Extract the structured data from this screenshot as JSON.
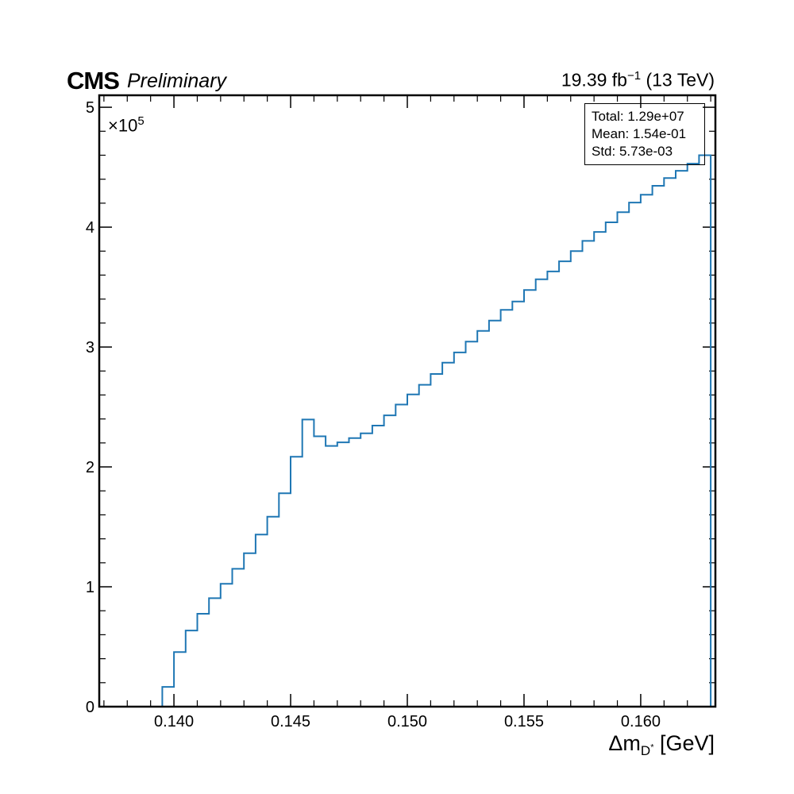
{
  "header": {
    "experiment": "CMS",
    "status": "Preliminary",
    "lumi_value": "19.39 fb",
    "lumi_exp": "−1",
    "energy": "(13 TeV)"
  },
  "stats": {
    "total": "Total: 1.29e+07",
    "mean": "Mean: 1.54e-01",
    "std": "Std: 5.73e-03"
  },
  "axis": {
    "multiplier_base": "×10",
    "multiplier_exp": "5",
    "xlabel_main": "Δm",
    "xlabel_sub": "D",
    "xlabel_sup": "*",
    "xlabel_unit": " [GeV]"
  },
  "colors": {
    "histogram": "#1f77b4",
    "frame": "#000000"
  },
  "chart_data": {
    "type": "histogram-step",
    "bin_width": 0.0005,
    "bin_edges_start": 0.1395,
    "xlim": [
      0.1368,
      0.1632
    ],
    "ylim": [
      0,
      510000
    ],
    "y_multiplier": "×10^5",
    "xticks": [
      "0.140",
      "0.145",
      "0.150",
      "0.155",
      "0.160"
    ],
    "xtick_values": [
      0.14,
      0.145,
      0.15,
      0.155,
      0.16
    ],
    "yticks": [
      "0",
      "1",
      "2",
      "3",
      "4",
      "5"
    ],
    "ytick_values": [
      0,
      100000,
      200000,
      300000,
      400000,
      500000
    ],
    "values": [
      16500,
      45500,
      63500,
      77500,
      90500,
      102500,
      115000,
      128000,
      143500,
      158500,
      178000,
      208500,
      239500,
      225500,
      217500,
      220500,
      224000,
      228000,
      234500,
      243000,
      252000,
      260500,
      268500,
      277500,
      287000,
      295500,
      304500,
      313500,
      322000,
      331000,
      338000,
      347500,
      356500,
      363000,
      371500,
      380000,
      388500,
      396000,
      404000,
      412500,
      420500,
      427000,
      434500,
      441000,
      447000,
      453000,
      460000
    ],
    "xlabel": "Δm_{D*} [GeV]",
    "grid": false
  }
}
